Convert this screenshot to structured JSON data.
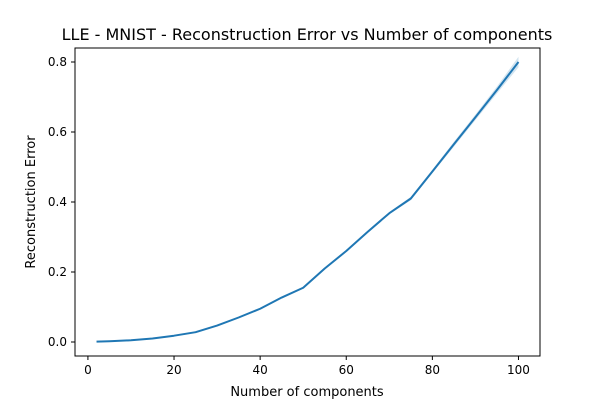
{
  "chart_data": {
    "type": "line",
    "title": "LLE - MNIST - Reconstruction Error vs Number of components",
    "xlabel": "Number of components",
    "ylabel": "Reconstruction Error",
    "xlim": [
      -3,
      105
    ],
    "ylim": [
      -0.04,
      0.84
    ],
    "xticks": [
      0,
      20,
      40,
      60,
      80,
      100
    ],
    "xtick_labels": [
      "0",
      "20",
      "40",
      "60",
      "80",
      "100"
    ],
    "yticks": [
      0.0,
      0.2,
      0.4,
      0.6,
      0.8
    ],
    "ytick_labels": [
      "0.0",
      "0.2",
      "0.4",
      "0.6",
      "0.8"
    ],
    "grid": false,
    "colors": {
      "line": "#1f77b4",
      "band": "#1f77b4"
    },
    "series": [
      {
        "x": [
          2,
          5,
          10,
          15,
          20,
          25,
          30,
          35,
          40,
          45,
          50,
          55,
          60,
          65,
          70,
          75,
          80,
          85,
          90,
          95,
          100
        ],
        "y": [
          0.001,
          0.002,
          0.005,
          0.01,
          0.018,
          0.028,
          0.047,
          0.07,
          0.095,
          0.127,
          0.155,
          0.21,
          0.26,
          0.315,
          0.368,
          0.41,
          0.487,
          0.565,
          0.642,
          0.72,
          0.8
        ],
        "ci_low": [
          0.001,
          0.002,
          0.005,
          0.01,
          0.018,
          0.028,
          0.046,
          0.069,
          0.094,
          0.126,
          0.153,
          0.208,
          0.258,
          0.313,
          0.365,
          0.405,
          0.482,
          0.558,
          0.634,
          0.71,
          0.785
        ],
        "ci_high": [
          0.001,
          0.002,
          0.005,
          0.01,
          0.018,
          0.028,
          0.048,
          0.071,
          0.096,
          0.128,
          0.157,
          0.212,
          0.262,
          0.317,
          0.371,
          0.415,
          0.492,
          0.572,
          0.65,
          0.73,
          0.815
        ]
      }
    ]
  }
}
